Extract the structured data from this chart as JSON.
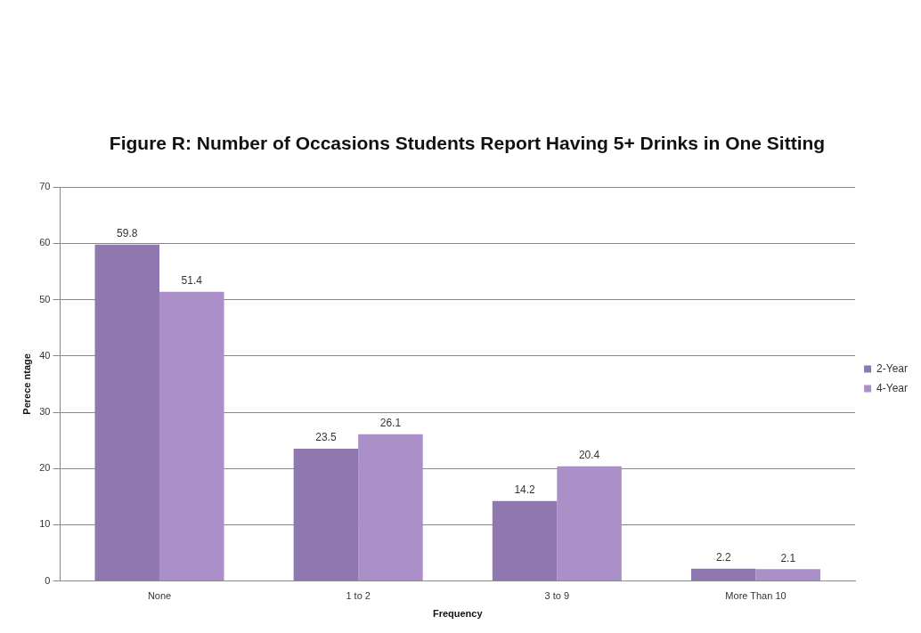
{
  "chart_data": {
    "type": "bar",
    "title": "Figure R: Number of Occasions Students Report Having 5+ Drinks in One Sitting",
    "xlabel": "Frequency",
    "ylabel": "Perece ntage",
    "categories": [
      "None",
      "1 to 2",
      "3 to 9",
      "More Than 10"
    ],
    "series": [
      {
        "name": "2-Year",
        "color": "#8f78b0",
        "values": [
          59.8,
          23.5,
          14.2,
          2.2
        ]
      },
      {
        "name": "4-Year",
        "color": "#ab8fc9",
        "values": [
          51.4,
          26.1,
          20.4,
          2.1
        ]
      }
    ],
    "ylim": [
      0,
      70
    ],
    "yticks": [
      0,
      10,
      20,
      30,
      40,
      50,
      60,
      70
    ],
    "grid": "y",
    "legend": "right",
    "data_labels": true
  }
}
